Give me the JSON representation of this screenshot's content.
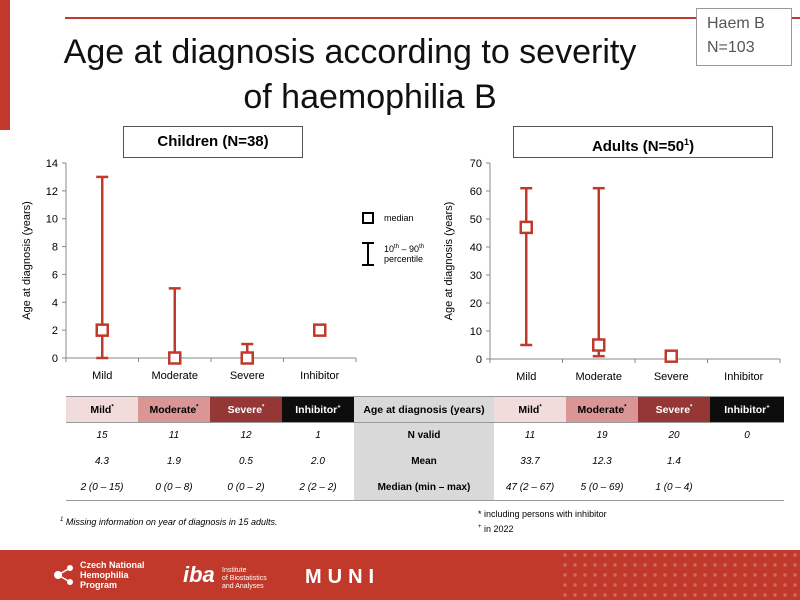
{
  "title_line1": "Age at diagnosis according to severity",
  "title_line2": "of haemophilia B",
  "badge": {
    "line1": "Haem B",
    "line2": "N=103"
  },
  "legend": {
    "median": "median",
    "percentile_sup1": "th",
    "percentile_sup2": "th",
    "percentile_a": "10",
    "percentile_b": " – 90",
    "percentile_word": "percentile"
  },
  "colors": {
    "accent": "#c0392b",
    "mild": "#f2dcdb",
    "moderate": "#d99694",
    "severe": "#953735",
    "inhibitor": "#0d0d0d",
    "label_gray": "#d9d9d9"
  },
  "chart_data": [
    {
      "type": "scatter",
      "title": "Children (N=38)",
      "ylabel": "Age at diagnosis (years)",
      "categories": [
        "Mild",
        "Moderate",
        "Severe",
        "Inhibitor"
      ],
      "ylim": [
        0,
        14
      ],
      "yticks": [
        0,
        2,
        4,
        6,
        8,
        10,
        12,
        14
      ],
      "median": [
        2,
        0,
        0,
        2
      ],
      "p10": [
        0,
        0,
        0,
        null
      ],
      "p90": [
        13,
        5,
        1,
        null
      ]
    },
    {
      "type": "scatter",
      "title_prefix": "Adults (N=50",
      "title_sup": "1",
      "title_suffix": ")",
      "ylabel": "Age at diagnosis (years)",
      "categories": [
        "Mild",
        "Moderate",
        "Severe",
        "Inhibitor"
      ],
      "ylim": [
        0,
        70
      ],
      "yticks": [
        0,
        10,
        20,
        30,
        40,
        50,
        60,
        70
      ],
      "median": [
        47,
        5,
        1,
        null
      ],
      "p10": [
        5,
        1,
        null,
        null
      ],
      "p90": [
        61,
        61,
        null,
        null
      ]
    }
  ],
  "table": {
    "center_header": "Age at diagnosis (years)",
    "left_headers": [
      "Mild",
      "Moderate",
      "Severe",
      "Inhibitor"
    ],
    "left_sups": [
      "*",
      "*",
      "*",
      "+"
    ],
    "right_headers": [
      "Mild",
      "Moderate",
      "Severe",
      "Inhibitor"
    ],
    "right_sups": [
      "*",
      "*",
      "*",
      "+"
    ],
    "rows": [
      {
        "label": "N valid",
        "left": [
          "15",
          "11",
          "12",
          "1"
        ],
        "right": [
          "11",
          "19",
          "20",
          "0"
        ]
      },
      {
        "label": "Mean",
        "left": [
          "4.3",
          "1.9",
          "0.5",
          "2.0"
        ],
        "right": [
          "33.7",
          "12.3",
          "1.4",
          ""
        ]
      },
      {
        "label": "Median (min – max)",
        "left": [
          "2 (0 – 15)",
          "0 (0 – 8)",
          "0 (0 – 2)",
          "2 (2 – 2)"
        ],
        "right": [
          "47 (2 – 67)",
          "5 (0 – 69)",
          "1 (0 – 4)",
          ""
        ]
      }
    ]
  },
  "footnotes": {
    "missing_sup": "1",
    "missing": " Missing information on year of diagnosis in 15 adults.",
    "inhibitor_note": "* including persons with inhibitor",
    "year_sup": "+",
    "year_note": " in 2022"
  },
  "footer": {
    "cnhp_line1": "Czech National",
    "cnhp_line2": "Hemophilia",
    "cnhp_line3": "Program",
    "iba_mark": "iba",
    "iba_line1": "Institute",
    "iba_line2": "of Biostatistics",
    "iba_line3": "and Analyses",
    "muni": "MUNI"
  }
}
